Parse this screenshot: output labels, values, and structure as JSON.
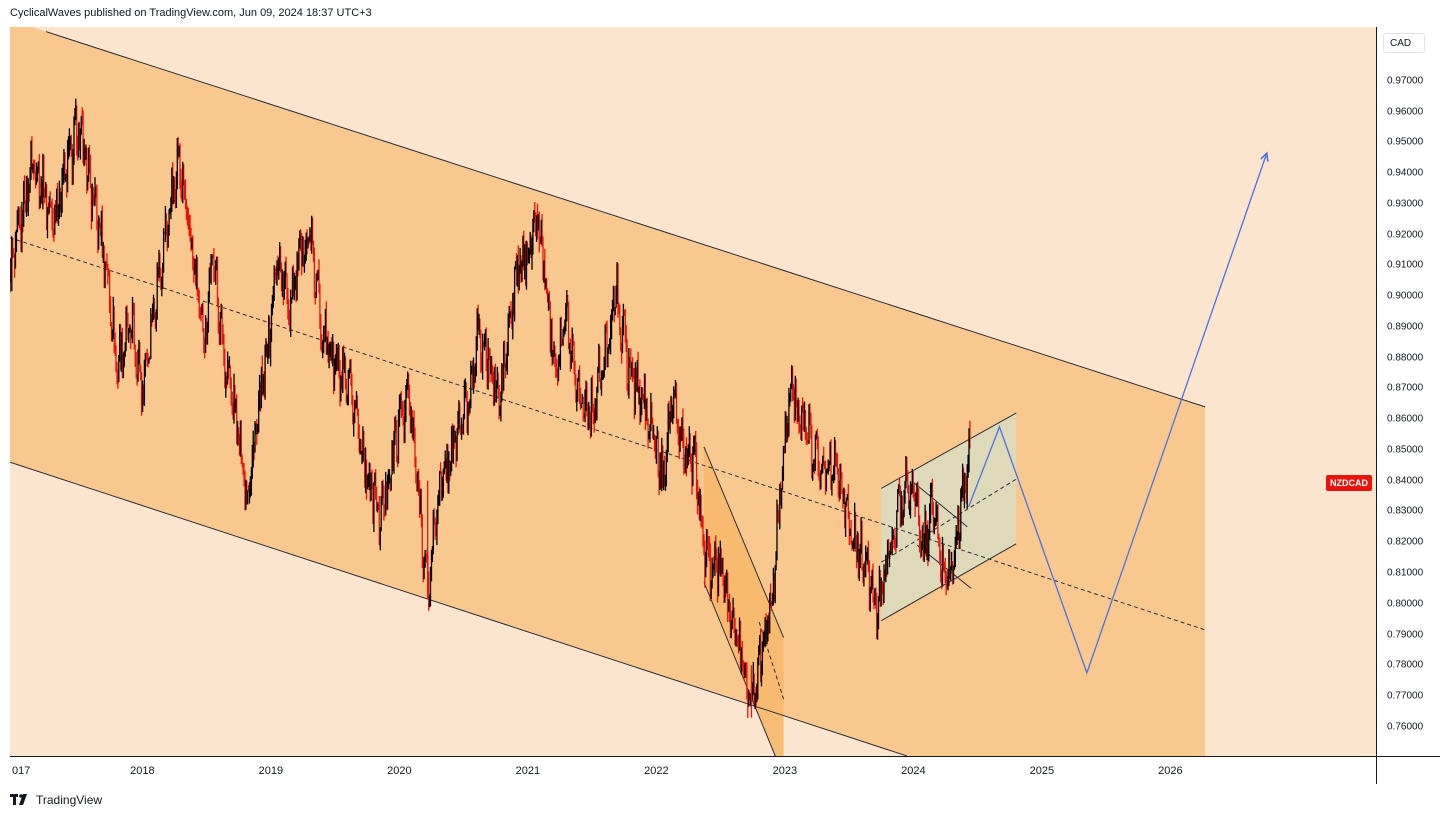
{
  "header": {
    "publisher_line": "CyclicalWaves published on TradingView.com, Jun 09, 2024 18:37 UTC+3"
  },
  "price_axis": {
    "currency": "CAD",
    "ticks": [
      "0.97000",
      "0.96000",
      "0.95000",
      "0.94000",
      "0.93000",
      "0.92000",
      "0.91000",
      "0.90000",
      "0.89000",
      "0.88000",
      "0.87000",
      "0.86000",
      "0.85000",
      "0.84000",
      "0.83000",
      "0.82000",
      "0.81000",
      "0.80000",
      "0.79000",
      "0.78000",
      "0.77000",
      "0.76000"
    ]
  },
  "time_axis": {
    "ticks": [
      "017",
      "2018",
      "2019",
      "2020",
      "2021",
      "2022",
      "2023",
      "2024",
      "2025",
      "2026"
    ]
  },
  "symbol_tag": "NZDCAD",
  "footer": {
    "brand": "TradingView"
  },
  "colors": {
    "background": "#fbe5cf",
    "channel_fill": "#f9c88f",
    "triangle_fill": "#f7b86a",
    "flag_fill": "#d9dcc0",
    "candle_up": "#000000",
    "candle_down": "#e8140c",
    "projection": "#4a72e0"
  },
  "chart_data": {
    "type": "line",
    "symbol": "NZDCAD",
    "title": "",
    "xlabel": "",
    "ylabel": "",
    "ylim": [
      0.7505,
      0.9875
    ],
    "xlim": [
      2016.97,
      2027.6
    ],
    "price_path": [
      [
        2016.97,
        0.905
      ],
      [
        2017.15,
        0.945
      ],
      [
        2017.3,
        0.925
      ],
      [
        2017.5,
        0.955
      ],
      [
        2017.6,
        0.935
      ],
      [
        2017.72,
        0.91
      ],
      [
        2017.8,
        0.878
      ],
      [
        2017.92,
        0.89
      ],
      [
        2018.0,
        0.87
      ],
      [
        2018.1,
        0.9
      ],
      [
        2018.2,
        0.925
      ],
      [
        2018.28,
        0.945
      ],
      [
        2018.4,
        0.91
      ],
      [
        2018.48,
        0.885
      ],
      [
        2018.55,
        0.915
      ],
      [
        2018.63,
        0.882
      ],
      [
        2018.72,
        0.862
      ],
      [
        2018.82,
        0.836
      ],
      [
        2018.9,
        0.86
      ],
      [
        2018.98,
        0.885
      ],
      [
        2019.05,
        0.912
      ],
      [
        2019.15,
        0.898
      ],
      [
        2019.22,
        0.912
      ],
      [
        2019.3,
        0.92
      ],
      [
        2019.4,
        0.89
      ],
      [
        2019.55,
        0.872
      ],
      [
        2019.65,
        0.865
      ],
      [
        2019.75,
        0.842
      ],
      [
        2019.85,
        0.828
      ],
      [
        2019.95,
        0.848
      ],
      [
        2020.0,
        0.86
      ],
      [
        2020.07,
        0.868
      ],
      [
        2020.14,
        0.84
      ],
      [
        2020.22,
        0.803
      ],
      [
        2020.3,
        0.835
      ],
      [
        2020.45,
        0.855
      ],
      [
        2020.55,
        0.868
      ],
      [
        2020.6,
        0.888
      ],
      [
        2020.7,
        0.878
      ],
      [
        2020.78,
        0.865
      ],
      [
        2020.85,
        0.888
      ],
      [
        2020.92,
        0.908
      ],
      [
        2021.0,
        0.915
      ],
      [
        2021.08,
        0.925
      ],
      [
        2021.15,
        0.9
      ],
      [
        2021.22,
        0.878
      ],
      [
        2021.3,
        0.893
      ],
      [
        2021.4,
        0.868
      ],
      [
        2021.5,
        0.862
      ],
      [
        2021.6,
        0.88
      ],
      [
        2021.68,
        0.902
      ],
      [
        2021.78,
        0.878
      ],
      [
        2021.88,
        0.868
      ],
      [
        2021.95,
        0.858
      ],
      [
        2022.05,
        0.842
      ],
      [
        2022.12,
        0.865
      ],
      [
        2022.22,
        0.85
      ],
      [
        2022.3,
        0.845
      ],
      [
        2022.38,
        0.815
      ],
      [
        2022.5,
        0.81
      ],
      [
        2022.62,
        0.79
      ],
      [
        2022.74,
        0.768
      ],
      [
        2022.8,
        0.782
      ],
      [
        2022.9,
        0.8
      ],
      [
        2022.96,
        0.835
      ],
      [
        2023.05,
        0.875
      ],
      [
        2023.1,
        0.862
      ],
      [
        2023.2,
        0.852
      ],
      [
        2023.3,
        0.843
      ],
      [
        2023.4,
        0.848
      ],
      [
        2023.5,
        0.825
      ],
      [
        2023.58,
        0.818
      ],
      [
        2023.65,
        0.808
      ],
      [
        2023.72,
        0.798
      ],
      [
        2023.78,
        0.81
      ],
      [
        2023.85,
        0.825
      ],
      [
        2023.93,
        0.838
      ],
      [
        2024.0,
        0.838
      ],
      [
        2024.08,
        0.818
      ],
      [
        2024.15,
        0.832
      ],
      [
        2024.22,
        0.812
      ],
      [
        2024.3,
        0.81
      ],
      [
        2024.38,
        0.835
      ],
      [
        2024.44,
        0.848
      ]
    ],
    "projection_path": [
      [
        2024.43,
        0.8315
      ],
      [
        2024.67,
        0.8575
      ],
      [
        2025.35,
        0.7775
      ],
      [
        2026.75,
        0.9465
      ]
    ],
    "channel": {
      "upper": [
        [
          2017.25,
          0.986
        ],
        [
          2026.27,
          0.864
        ]
      ],
      "middle": [
        [
          2016.97,
          0.919
        ],
        [
          2026.27,
          0.7915
        ]
      ],
      "lower": [
        [
          2016.97,
          0.846
        ],
        [
          2023.95,
          0.7505
        ]
      ],
      "fill_end_x": 2026.27
    },
    "falling_wedge": {
      "upper": [
        [
          2022.37,
          0.851
        ],
        [
          2022.99,
          0.789
        ]
      ],
      "lower": [
        [
          2022.37,
          0.807
        ],
        [
          2022.94,
          0.749
        ]
      ],
      "fill_x": [
        2022.37,
        2022.99
      ]
    },
    "rising_flag": {
      "upper": [
        [
          2023.75,
          0.8375
        ],
        [
          2024.8,
          0.862
        ]
      ],
      "middle": [
        [
          2023.75,
          0.8135
        ],
        [
          2024.8,
          0.8405
        ]
      ],
      "lower": [
        [
          2023.75,
          0.7945
        ],
        [
          2024.8,
          0.8195
        ]
      ],
      "inner_channel": {
        "upper": [
          [
            2024.0,
            0.8395
          ],
          [
            2024.42,
            0.825
          ]
        ],
        "lower": [
          [
            2024.03,
            0.819
          ],
          [
            2024.45,
            0.805
          ]
        ]
      }
    }
  }
}
